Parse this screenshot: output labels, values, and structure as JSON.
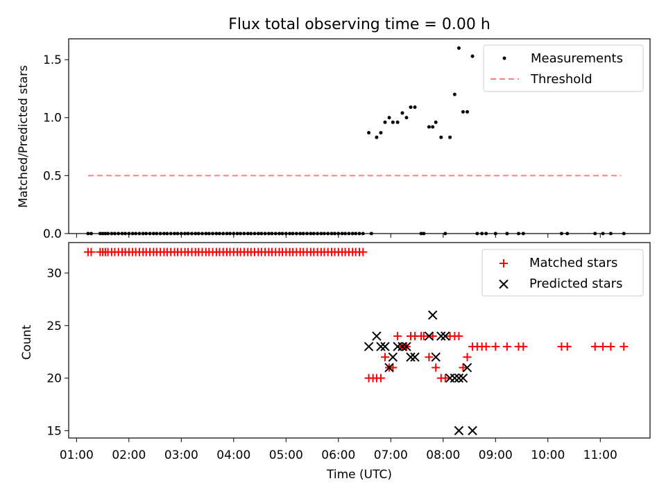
{
  "chart_data": [
    {
      "type": "scatter",
      "title": "Flux total observing time = 0.00 h",
      "xlabel": "",
      "ylabel": "Matched/Predicted stars",
      "xlim": [
        0.85,
        11.95
      ],
      "ylim": [
        0.0,
        1.68
      ],
      "yticks": [
        0.0,
        0.5,
        1.0,
        1.5
      ],
      "ytick_labels": [
        "0.0",
        "0.5",
        "1.0",
        "1.5"
      ],
      "xticks": [
        1,
        2,
        3,
        4,
        5,
        6,
        7,
        8,
        9,
        10,
        11
      ],
      "xtick_labels": [],
      "legend_position": "top-right",
      "series": [
        {
          "name": "Measurements",
          "kind": "points",
          "color": "#000000",
          "x": [
            1.22,
            1.28,
            1.45,
            1.5,
            1.55,
            1.6,
            1.67,
            1.73,
            1.8,
            1.87,
            1.93,
            2.0,
            2.07,
            2.13,
            2.2,
            2.27,
            2.33,
            2.4,
            2.47,
            2.53,
            2.6,
            2.67,
            2.73,
            2.8,
            2.87,
            2.93,
            3.0,
            3.07,
            3.13,
            3.2,
            3.27,
            3.33,
            3.4,
            3.47,
            3.53,
            3.6,
            3.67,
            3.73,
            3.8,
            3.87,
            3.93,
            4.0,
            4.07,
            4.13,
            4.2,
            4.27,
            4.33,
            4.4,
            4.47,
            4.53,
            4.6,
            4.67,
            4.73,
            4.8,
            4.87,
            4.93,
            5.0,
            5.07,
            5.13,
            5.2,
            5.27,
            5.33,
            5.4,
            5.47,
            5.53,
            5.6,
            5.67,
            5.73,
            5.8,
            5.87,
            5.93,
            6.0,
            6.07,
            6.13,
            6.2,
            6.27,
            6.33,
            6.4,
            6.47,
            6.58,
            6.63,
            6.73,
            6.81,
            6.89,
            6.97,
            7.04,
            7.13,
            7.22,
            7.3,
            7.38,
            7.46,
            7.58,
            7.63,
            7.73,
            7.8,
            7.86,
            7.96,
            8.04,
            8.13,
            8.22,
            8.3,
            8.38,
            8.46,
            8.56,
            8.65,
            8.74,
            8.82,
            9.0,
            9.22,
            9.44,
            9.53,
            10.26,
            10.37,
            10.9,
            11.05,
            11.2,
            11.45
          ],
          "y": [
            0,
            0,
            0,
            0,
            0,
            0,
            0,
            0,
            0,
            0,
            0,
            0,
            0,
            0,
            0,
            0,
            0,
            0,
            0,
            0,
            0,
            0,
            0,
            0,
            0,
            0,
            0,
            0,
            0,
            0,
            0,
            0,
            0,
            0,
            0,
            0,
            0,
            0,
            0,
            0,
            0,
            0,
            0,
            0,
            0,
            0,
            0,
            0,
            0,
            0,
            0,
            0,
            0,
            0,
            0,
            0,
            0,
            0,
            0,
            0,
            0,
            0,
            0,
            0,
            0,
            0,
            0,
            0,
            0,
            0,
            0,
            0,
            0,
            0,
            0,
            0,
            0,
            0,
            0,
            0.87,
            0,
            0.83,
            0.87,
            0.96,
            1.0,
            0.96,
            0.96,
            1.04,
            1.0,
            1.09,
            1.09,
            0,
            0,
            0.92,
            0.92,
            0.96,
            0.83,
            0,
            0.83,
            1.2,
            1.6,
            1.05,
            1.05,
            1.53,
            0,
            0,
            0,
            0,
            0,
            0,
            0,
            0,
            0,
            0,
            0,
            0,
            0
          ]
        },
        {
          "name": "Threshold",
          "kind": "dashed-line",
          "color": "#ff7f7f",
          "x": [
            1.22,
            11.4
          ],
          "y": [
            0.5,
            0.5
          ]
        }
      ]
    },
    {
      "type": "scatter",
      "title": "",
      "xlabel": "Time (UTC)",
      "ylabel": "Count",
      "xlim": [
        0.85,
        11.95
      ],
      "ylim": [
        14.3,
        32.9
      ],
      "yticks": [
        15,
        20,
        25,
        30
      ],
      "ytick_labels": [
        "15",
        "20",
        "25",
        "30"
      ],
      "xticks": [
        1,
        2,
        3,
        4,
        5,
        6,
        7,
        8,
        9,
        10,
        11
      ],
      "xtick_labels": [
        "01:00",
        "02:00",
        "03:00",
        "04:00",
        "05:00",
        "06:00",
        "07:00",
        "08:00",
        "09:00",
        "10:00",
        "11:00"
      ],
      "legend_position": "top-right",
      "series": [
        {
          "name": "Matched stars",
          "kind": "plus",
          "color": "#ff0000",
          "x": [
            1.22,
            1.28,
            1.45,
            1.5,
            1.55,
            1.6,
            1.67,
            1.73,
            1.8,
            1.87,
            1.93,
            2.0,
            2.07,
            2.13,
            2.2,
            2.27,
            2.33,
            2.4,
            2.47,
            2.53,
            2.6,
            2.67,
            2.73,
            2.8,
            2.87,
            2.93,
            3.0,
            3.07,
            3.13,
            3.2,
            3.27,
            3.33,
            3.4,
            3.47,
            3.53,
            3.6,
            3.67,
            3.73,
            3.8,
            3.87,
            3.93,
            4.0,
            4.07,
            4.13,
            4.2,
            4.27,
            4.33,
            4.4,
            4.47,
            4.53,
            4.6,
            4.67,
            4.73,
            4.8,
            4.87,
            4.93,
            5.0,
            5.07,
            5.13,
            5.2,
            5.27,
            5.33,
            5.4,
            5.47,
            5.53,
            5.6,
            5.67,
            5.73,
            5.8,
            5.87,
            5.93,
            6.0,
            6.07,
            6.13,
            6.2,
            6.27,
            6.33,
            6.4,
            6.47,
            6.58,
            6.66,
            6.73,
            6.81,
            6.89,
            6.97,
            7.04,
            7.13,
            7.22,
            7.3,
            7.38,
            7.46,
            7.58,
            7.63,
            7.73,
            7.8,
            7.86,
            7.96,
            8.04,
            8.13,
            8.22,
            8.3,
            8.38,
            8.46,
            8.56,
            8.65,
            8.74,
            8.82,
            9.0,
            9.22,
            9.44,
            9.53,
            10.26,
            10.37,
            10.9,
            11.05,
            11.2,
            11.45
          ],
          "y": [
            32,
            32,
            32,
            32,
            32,
            32,
            32,
            32,
            32,
            32,
            32,
            32,
            32,
            32,
            32,
            32,
            32,
            32,
            32,
            32,
            32,
            32,
            32,
            32,
            32,
            32,
            32,
            32,
            32,
            32,
            32,
            32,
            32,
            32,
            32,
            32,
            32,
            32,
            32,
            32,
            32,
            32,
            32,
            32,
            32,
            32,
            32,
            32,
            32,
            32,
            32,
            32,
            32,
            32,
            32,
            32,
            32,
            32,
            32,
            32,
            32,
            32,
            32,
            32,
            32,
            32,
            32,
            32,
            32,
            32,
            32,
            32,
            32,
            32,
            32,
            32,
            32,
            32,
            32,
            20,
            20,
            20,
            20,
            22,
            21,
            21,
            24,
            23,
            23,
            24,
            24,
            24,
            24,
            22,
            24,
            21,
            20,
            20,
            24,
            24,
            24,
            21,
            22,
            23,
            23,
            23,
            23,
            23,
            23,
            23,
            23,
            23,
            23,
            23,
            23,
            23,
            23
          ]
        },
        {
          "name": "Predicted stars",
          "kind": "cross",
          "color": "#000000",
          "x": [
            6.58,
            6.73,
            6.81,
            6.89,
            6.97,
            7.04,
            7.13,
            7.22,
            7.3,
            7.38,
            7.46,
            7.73,
            7.8,
            7.86,
            7.96,
            8.04,
            8.13,
            8.22,
            8.3,
            8.38,
            8.46,
            8.56,
            8.3
          ],
          "y": [
            23,
            24,
            23,
            23,
            21,
            22,
            23,
            23,
            23,
            22,
            22,
            24,
            26,
            22,
            24,
            24,
            20,
            20,
            20,
            20,
            21,
            15,
            15
          ]
        }
      ]
    }
  ]
}
